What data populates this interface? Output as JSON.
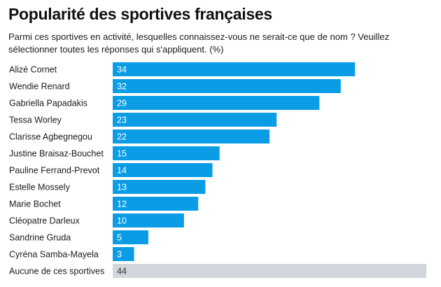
{
  "chart_data": {
    "type": "bar",
    "orientation": "horizontal",
    "title": "Popularité des sportives françaises",
    "subtitle": "Parmi ces sportives en activité, lesquelles connaissez-vous ne serait-ce que de nom ? Veuillez sélectionner toutes les réponses qui s'appliquent. (%)",
    "categories": [
      "Alizé Cornet",
      "Wendie Renard",
      "Gabriella Papadakis",
      "Tessa Worley",
      "Clarisse Agbegnegou",
      "Justine Braisaz-Bouchet",
      "Pauline Ferrand-Prevot",
      "Estelle Mossely",
      "Marie Bochet",
      "Cléopatre Darleux",
      "Sandrine Gruda",
      "Cyréna Samba-Mayela",
      "Aucune de ces sportives"
    ],
    "values": [
      34,
      32,
      29,
      23,
      22,
      15,
      14,
      13,
      12,
      10,
      5,
      3,
      44
    ],
    "bar_colors": [
      "#0a9de6",
      "#0a9de6",
      "#0a9de6",
      "#0a9de6",
      "#0a9de6",
      "#0a9de6",
      "#0a9de6",
      "#0a9de6",
      "#0a9de6",
      "#0a9de6",
      "#0a9de6",
      "#0a9de6",
      "#d3d5dd"
    ],
    "label_colors": [
      "#ffffff",
      "#ffffff",
      "#ffffff",
      "#ffffff",
      "#ffffff",
      "#ffffff",
      "#ffffff",
      "#ffffff",
      "#ffffff",
      "#ffffff",
      "#ffffff",
      "#ffffff",
      "#333333"
    ],
    "xlim": [
      0,
      44
    ],
    "grid": false,
    "legend": "none"
  }
}
